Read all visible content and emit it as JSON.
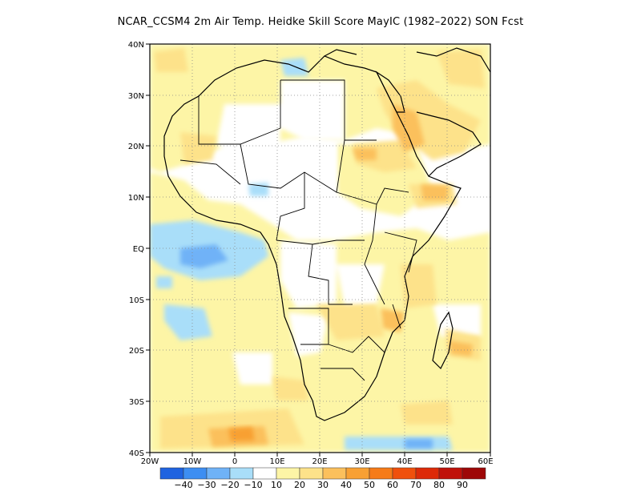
{
  "title": "NCAR_CCSM4 2m Air Temp. Heidke Skill Score MayIC (1982–2022) SON Fcst",
  "map": {
    "lat_labels": [
      "40N",
      "30N",
      "20N",
      "10N",
      "EQ",
      "10S",
      "20S",
      "30S",
      "40S"
    ],
    "lon_labels": [
      "20W",
      "10W",
      "0",
      "10E",
      "20E",
      "30E",
      "40E",
      "50E",
      "60E"
    ],
    "lon_range": [
      -20,
      60
    ],
    "lat_range": [
      -40,
      40
    ],
    "grid": "dotted"
  },
  "colorbar": {
    "colors": [
      "#1f63e0",
      "#3d8ef2",
      "#6fb2f7",
      "#a9def9",
      "#ffffff",
      "#fdf5a6",
      "#fde28a",
      "#fbc05c",
      "#f8a033",
      "#f67b18",
      "#f0500c",
      "#dd2a08",
      "#c0110a",
      "#9e0707"
    ],
    "labels": [
      "−40",
      "−30",
      "−20",
      "−10",
      "10",
      "20",
      "30",
      "40",
      "50",
      "60",
      "70",
      "80",
      "90"
    ]
  }
}
